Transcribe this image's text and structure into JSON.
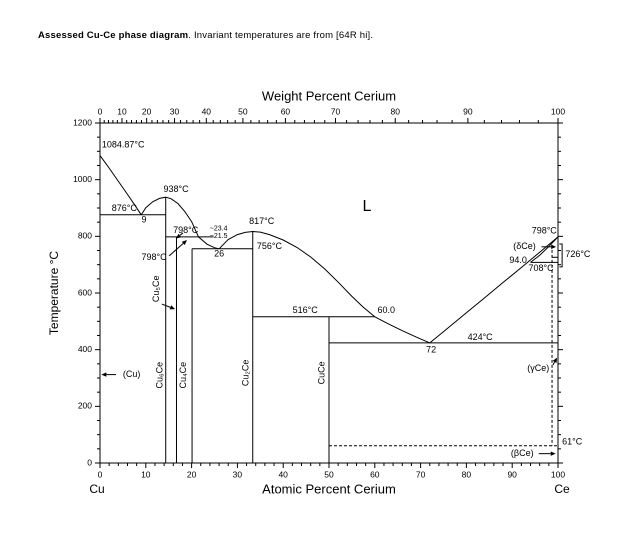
{
  "caption": {
    "bold": "Assessed Cu-Ce phase diagram",
    "rest": ". Invariant temperatures are from [64R hi]."
  },
  "chart_data": {
    "type": "line",
    "title": "Assessed Cu-Ce phase diagram",
    "top_axis_label": "Weight Percent Cerium",
    "xlabel": "Atomic Percent Cerium",
    "ylabel": "Temperature °C",
    "left_end_label": "Cu",
    "right_end_label": "Ce",
    "xlim": [
      0,
      100
    ],
    "ylim": [
      0,
      1200
    ],
    "x_ticks_major": [
      0,
      10,
      20,
      30,
      40,
      50,
      60,
      70,
      80,
      90,
      100
    ],
    "y_ticks_major": [
      0,
      200,
      400,
      600,
      800,
      1000,
      1200
    ],
    "top_ticks_weight": [
      0,
      10,
      20,
      30,
      40,
      50,
      60,
      70,
      80,
      90,
      100
    ],
    "curves": [
      {
        "name": "cu-liquidus",
        "points": [
          [
            0,
            1084.87
          ],
          [
            1.5,
            1052
          ],
          [
            3,
            1018
          ],
          [
            4.5,
            983
          ],
          [
            6,
            948
          ],
          [
            7.5,
            913
          ],
          [
            9,
            876
          ]
        ]
      },
      {
        "name": "cu6ce-dome-liquidus",
        "points": [
          [
            9,
            876
          ],
          [
            10,
            901
          ],
          [
            11.5,
            922
          ],
          [
            13,
            934
          ],
          [
            14.35,
            938
          ],
          [
            15.5,
            933
          ],
          [
            17,
            916
          ],
          [
            18.5,
            888
          ],
          [
            20,
            852
          ],
          [
            21.5,
            798
          ],
          [
            23.4,
            772
          ],
          [
            25,
            760
          ],
          [
            26,
            756
          ]
        ]
      },
      {
        "name": "cu2ce-dome-liquidus",
        "points": [
          [
            26,
            756
          ],
          [
            28,
            789
          ],
          [
            30,
            806
          ],
          [
            31.7,
            814
          ],
          [
            33.35,
            817
          ],
          [
            35,
            815
          ],
          [
            37,
            806
          ],
          [
            40,
            787
          ],
          [
            43,
            761
          ],
          [
            46,
            727
          ],
          [
            49,
            686
          ],
          [
            52,
            638
          ],
          [
            55,
            588
          ],
          [
            57.5,
            550
          ],
          [
            60,
            516
          ]
        ]
      },
      {
        "name": "cuce-liquidus",
        "points": [
          [
            60,
            516
          ],
          [
            63,
            491
          ],
          [
            66,
            467
          ],
          [
            69,
            445
          ],
          [
            72,
            424
          ]
        ]
      },
      {
        "name": "ce-liquidus",
        "points": [
          [
            72,
            424
          ],
          [
            76,
            477
          ],
          [
            80,
            530
          ],
          [
            84,
            583
          ],
          [
            88,
            637
          ],
          [
            92,
            690
          ],
          [
            96,
            744
          ],
          [
            100,
            798
          ]
        ]
      },
      {
        "name": "delta-ce-solidus",
        "points": [
          [
            94,
            708
          ],
          [
            96,
            733
          ],
          [
            98,
            764
          ],
          [
            100,
            798
          ]
        ]
      }
    ],
    "isotherms": [
      {
        "name": "eutectic-876-line",
        "T": 876,
        "x1": 0,
        "x2": 14.35
      },
      {
        "name": "peritectic-798-line",
        "T": 798,
        "x1": 14.35,
        "x2": 24.8
      },
      {
        "name": "eutectic-756-line",
        "T": 756,
        "x1": 20.1,
        "x2": 33.35
      },
      {
        "name": "peritectic-516-line",
        "T": 516,
        "x1": 33.35,
        "x2": 60
      },
      {
        "name": "eutectic-424-line",
        "T": 424,
        "x1": 50,
        "x2": 100
      },
      {
        "name": "peritectic-708-line",
        "T": 708,
        "x1": 94,
        "x2": 100
      },
      {
        "name": "transition-726-line",
        "T": 726,
        "x1": 98.7,
        "x2": 100
      },
      {
        "name": "transition-61-line",
        "T": 61,
        "x1": 50,
        "x2": 100,
        "dashed": true
      }
    ],
    "verticals": [
      {
        "name": "cu6ce-line",
        "x": 14.35,
        "t1": 938,
        "t2": 0
      },
      {
        "name": "cu5ce-line",
        "x": 16.7,
        "t1": 798,
        "t2": 0
      },
      {
        "name": "cu4ce-line",
        "x": 20.1,
        "t1": 756,
        "t2": 0
      },
      {
        "name": "cu2ce-line",
        "x": 33.35,
        "t1": 817,
        "t2": 0
      },
      {
        "name": "cuce-line",
        "x": 50,
        "t1": 516,
        "t2": 0
      },
      {
        "name": "gamma-ce-boundary",
        "x": 98.7,
        "t1": 770,
        "t2": 61,
        "dashed": true
      }
    ],
    "labels": [
      {
        "name": "cu-melting-point-label",
        "text": "1084.87°C",
        "x": 0.4,
        "y": 1122,
        "anchor": "start"
      },
      {
        "name": "eutectic-876-label",
        "text": "876°C",
        "x": 5.3,
        "y": 898
      },
      {
        "name": "eutectic-876-composition",
        "text": "9",
        "x": 9.6,
        "y": 858
      },
      {
        "name": "cu6ce-congruent-label",
        "text": "938°C",
        "x": 16.6,
        "y": 965
      },
      {
        "name": "peritectic-798-upper-label",
        "text": "798°C",
        "x": 18.7,
        "y": 820
      },
      {
        "name": "peritectic-798-lower-label",
        "text": "798°C",
        "x": 11.8,
        "y": 725
      },
      {
        "name": "liquid-composition-23-4",
        "text": "~23.4",
        "x": 25.9,
        "y": 827,
        "size": 7
      },
      {
        "name": "liquid-composition-21-5",
        "text": "~21.5",
        "x": 25.9,
        "y": 800,
        "size": 7
      },
      {
        "name": "eutectic-756-composition",
        "text": "26",
        "x": 26,
        "y": 737
      },
      {
        "name": "cu2ce-congruent-label",
        "text": "817°C",
        "x": 35.3,
        "y": 852
      },
      {
        "name": "eutectic-756-label",
        "text": "756°C",
        "x": 37,
        "y": 764
      },
      {
        "name": "liquid-phase-label",
        "text": "L",
        "x": 58.3,
        "y": 905,
        "size": 16,
        "font": "serif"
      },
      {
        "name": "peritectic-516-label",
        "text": "516°C",
        "x": 44.8,
        "y": 538
      },
      {
        "name": "peritectic-516-composition",
        "text": "60.0",
        "x": 62.5,
        "y": 538
      },
      {
        "name": "eutectic-424-composition",
        "text": "72",
        "x": 72.3,
        "y": 398
      },
      {
        "name": "eutectic-424-label",
        "text": "424°C",
        "x": 83,
        "y": 443
      },
      {
        "name": "ce-melting-label",
        "text": "798°C",
        "x": 97,
        "y": 818
      },
      {
        "name": "delta-ce-label",
        "text": "(δCe)",
        "x": 92.7,
        "y": 763
      },
      {
        "name": "composition-94-label",
        "text": "94.0",
        "x": 91.3,
        "y": 714
      },
      {
        "name": "peritectic-708-label",
        "text": "708°C",
        "x": 96.3,
        "y": 686
      },
      {
        "name": "delta-gamma-726-label",
        "text": "726°C",
        "x": 101.6,
        "y": 736,
        "anchor": "start"
      },
      {
        "name": "gamma-ce-label",
        "text": "(γCe)",
        "x": 95.7,
        "y": 333
      },
      {
        "name": "beta-ce-label",
        "text": "(βCe)",
        "x": 92.2,
        "y": 33
      },
      {
        "name": "transition-61-label",
        "text": "61°C",
        "x": 100.9,
        "y": 74,
        "anchor": "start"
      },
      {
        "name": "cu-phase-label",
        "text": "(Cu)",
        "x": 6.9,
        "y": 312
      },
      {
        "name": "cu6ce-label",
        "text": "Cu₆Ce",
        "x": 13.1,
        "y": 310,
        "rotate": true
      },
      {
        "name": "cu5ce-label",
        "text": "Cu₅Ce",
        "x": 12.4,
        "y": 615,
        "rotate": true
      },
      {
        "name": "cu4ce-label",
        "text": "Cu₄Ce",
        "x": 18.3,
        "y": 310,
        "rotate": true
      },
      {
        "name": "cu2ce-label",
        "text": "Cu₂Ce",
        "x": 31.9,
        "y": 318,
        "rotate": true
      },
      {
        "name": "cuce-label",
        "text": "CuCe",
        "x": 48.5,
        "y": 318,
        "rotate": true
      }
    ],
    "arrows": [
      {
        "name": "cu-phase-arrow",
        "x1": 3.5,
        "y1": 312,
        "x2": 0.3,
        "y2": 312
      },
      {
        "name": "peritectic-798-upper-arrow",
        "x1": 18.1,
        "y1": 812,
        "x2": 16.6,
        "y2": 792
      },
      {
        "name": "peritectic-798-lower-arrow",
        "x1": 15.1,
        "y1": 731,
        "x2": 19,
        "y2": 787
      },
      {
        "name": "cu5ce-arrow",
        "x1": 13.5,
        "y1": 561,
        "x2": 16.4,
        "y2": 543
      },
      {
        "name": "delta-ce-arrow",
        "x1": 96.4,
        "y1": 763,
        "x2": 99.6,
        "y2": 763
      },
      {
        "name": "gamma-ce-arrow",
        "x1": 98.9,
        "y1": 346,
        "x2": 99.8,
        "y2": 372
      },
      {
        "name": "beta-ce-arrow",
        "x1": 95.8,
        "y1": 33,
        "x2": 99.5,
        "y2": 33
      }
    ],
    "bracket_726": {
      "x1": 100.3,
      "x2": 100.9,
      "t1": 773,
      "t2": 692
    }
  }
}
